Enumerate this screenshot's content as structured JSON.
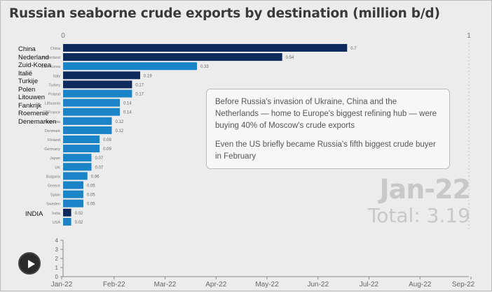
{
  "title": "Russian seaborne crude exports by destination (million b/d)",
  "colors": {
    "bar_dark": "#0d2a5c",
    "bar_light": "#1a84c9",
    "background": "#ececec"
  },
  "chart_data": [
    {
      "type": "bar",
      "orientation": "horizontal",
      "title": "Russian seaborne crude exports by destination (million b/d)",
      "xlim": [
        0,
        1
      ],
      "x_ticks": [
        "0",
        "1"
      ],
      "categories": [
        "China",
        "Nederland",
        "Zuid-Korea",
        "Italy",
        "Turkey",
        "Poland",
        "Lithuania",
        "France",
        "Romania",
        "Denmark",
        "Finland",
        "Germany",
        "Japan",
        "UK",
        "Bulgaria",
        "Greece",
        "Spain",
        "Sweden",
        "India",
        "USA"
      ],
      "values": [
        0.7,
        0.54,
        0.33,
        0.19,
        0.17,
        0.17,
        0.14,
        0.14,
        0.12,
        0.12,
        0.09,
        0.09,
        0.07,
        0.07,
        0.06,
        0.05,
        0.05,
        0.05,
        0.02,
        0.02
      ],
      "value_labels": [
        "0.7",
        "0.54",
        "0.33",
        "0.19",
        "0.17",
        "0.17",
        "0.14",
        "0.14",
        "0.12",
        "0.12",
        "0.09",
        "0.09",
        "0.07",
        "0.07",
        "0.06",
        "0.05",
        "0.05",
        "0.05",
        "0.02",
        "0.02"
      ],
      "bar_colors": [
        "dark",
        "dark",
        "light",
        "dark",
        "dark",
        "light",
        "light",
        "light",
        "light",
        "light",
        "light",
        "light",
        "light",
        "light",
        "light",
        "light",
        "light",
        "light",
        "dark",
        "light"
      ]
    },
    {
      "type": "line",
      "x_ticks": [
        "Jan-22",
        "Feb-22",
        "Mar-22",
        "Apr-22",
        "May-22",
        "Jun-22",
        "Jul-22",
        "Aug-22",
        "Sep-22"
      ],
      "y_ticks": [
        "0",
        "1",
        "2",
        "3",
        "4"
      ],
      "ylim": [
        0,
        4
      ],
      "series": []
    }
  ],
  "annotation": {
    "paragraph1": "Before Russia's invasion of Ukraine, China and the Netherlands — home to Europe's biggest refining hub — were buying 40% of Moscow's crude exports",
    "paragraph2": "Even the US briefly became Russia's fifth biggest crude buyer in February"
  },
  "current_date": "Jan-22",
  "total": "Total: 3.19",
  "overlay_labels": [
    "China",
    "Nederland",
    "Zuid-Korea",
    "Italië",
    "Turkije",
    "Polen",
    "Litouwen",
    "Fankrijk",
    "Roemenië",
    "Denemarken"
  ],
  "overlay_india": "INDIA",
  "play_icon": "play-icon"
}
